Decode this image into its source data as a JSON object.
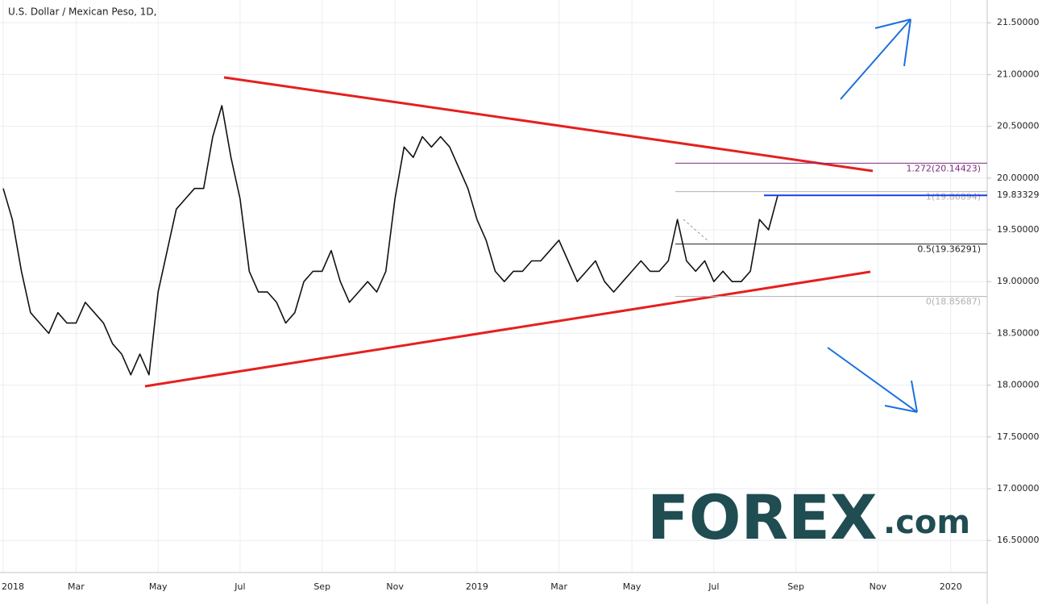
{
  "chart_data": {
    "type": "line",
    "title": "U.S. Dollar / Mexican Peso, 1D,",
    "categories": [
      "2018",
      null,
      null,
      null,
      null,
      null,
      null,
      null,
      "Mar",
      null,
      null,
      null,
      null,
      null,
      null,
      null,
      null,
      "May",
      null,
      null,
      null,
      null,
      null,
      null,
      null,
      null,
      "Jul",
      null,
      null,
      null,
      null,
      null,
      null,
      null,
      null,
      "Sep",
      null,
      null,
      null,
      null,
      null,
      null,
      null,
      "Nov",
      null,
      null,
      null,
      null,
      null,
      null,
      null,
      null,
      "2019",
      null,
      null,
      null,
      null,
      null,
      null,
      null,
      null,
      "Mar",
      null,
      null,
      null,
      null,
      null,
      null,
      null,
      "May",
      null,
      null,
      null,
      null,
      null,
      null,
      null,
      null,
      "Jul",
      null,
      null,
      null,
      null,
      null,
      null,
      null,
      null,
      "Sep",
      null,
      null,
      null,
      null,
      null,
      null,
      null,
      null,
      "Nov",
      null,
      null,
      null,
      null,
      null,
      null,
      null,
      "2020",
      null,
      null,
      null
    ],
    "values": [
      19.9,
      19.6,
      19.1,
      18.7,
      18.6,
      18.5,
      18.7,
      18.6,
      18.6,
      18.8,
      18.7,
      18.6,
      18.4,
      18.3,
      18.1,
      18.3,
      18.1,
      18.9,
      19.3,
      19.7,
      19.8,
      19.9,
      19.9,
      20.4,
      20.7,
      20.2,
      19.8,
      19.1,
      18.9,
      18.9,
      18.8,
      18.6,
      18.7,
      19.0,
      19.1,
      19.1,
      19.3,
      19.0,
      18.8,
      18.9,
      19.0,
      18.9,
      19.1,
      19.8,
      20.3,
      20.2,
      20.4,
      20.3,
      20.4,
      20.3,
      20.1,
      19.9,
      19.6,
      19.4,
      19.1,
      19.0,
      19.1,
      19.1,
      19.2,
      19.2,
      19.3,
      19.4,
      19.2,
      19.0,
      19.1,
      19.2,
      19.0,
      18.9,
      19.0,
      19.1,
      19.2,
      19.1,
      19.1,
      19.2,
      19.6,
      19.2,
      19.1,
      19.2,
      19.0,
      19.1,
      19.0,
      19.0,
      19.1,
      19.6,
      19.5,
      19.83,
      null,
      null,
      null,
      null,
      null,
      null,
      null,
      null,
      null,
      null,
      null,
      null,
      null,
      null,
      null,
      null,
      null,
      null,
      null,
      null,
      null,
      null
    ],
    "color": "#111111",
    "ylim": [
      16.19,
      21.72
    ],
    "yticks": [
      {
        "value": 16.5,
        "label": "16.50000"
      },
      {
        "value": 17,
        "label": "17.00000"
      },
      {
        "value": 17.5,
        "label": "17.50000"
      },
      {
        "value": 18,
        "label": "18.00000"
      },
      {
        "value": 18.5,
        "label": "18.50000"
      },
      {
        "value": 19,
        "label": "19.00000"
      },
      {
        "value": 19.5,
        "label": "19.50000"
      },
      {
        "value": 20,
        "label": "20.00000"
      },
      {
        "value": 20.5,
        "label": "20.50000"
      },
      {
        "value": 21,
        "label": "21.00000"
      },
      {
        "value": 21.5,
        "label": "21.50000"
      }
    ],
    "grid": true,
    "last_price": 19.83329,
    "fib_levels": [
      {
        "value": 20.14423,
        "label": "1.272(20.14423)",
        "color": "#7b2d7f"
      },
      {
        "value": 19.86894,
        "label": "1(19.86894)",
        "color": "#b0b0b0"
      },
      {
        "value": 19.36291,
        "label": "0.5(19.36291)",
        "color": "#222222"
      },
      {
        "value": 18.85687,
        "label": "0(18.85687)",
        "color": "#b0b0b0"
      }
    ],
    "logo": {
      "brand": "FOREX",
      "suffix": ".com"
    }
  }
}
